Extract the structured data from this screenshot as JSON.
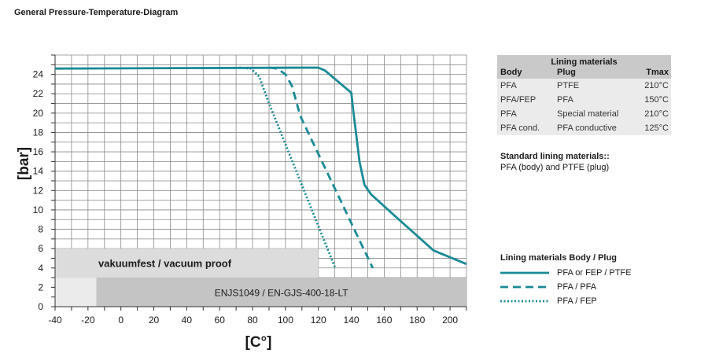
{
  "page_title": "General Pressure-Temperature-Diagram",
  "colors": {
    "series": "#1a8a96",
    "grid": "#8a8a8a",
    "band_light": "#dcdcdc",
    "band_dark": "#c4c4c4",
    "band_left": "#ebebeb"
  },
  "chart_data": {
    "type": "line",
    "xlabel": "[C°]",
    "ylabel": "[bar]",
    "xlim": [
      -40,
      210
    ],
    "ylim": [
      0,
      26
    ],
    "xticks": [
      -40,
      -20,
      0,
      20,
      40,
      60,
      80,
      100,
      120,
      140,
      160,
      180,
      200
    ],
    "yticks": [
      0,
      2,
      4,
      6,
      8,
      10,
      12,
      14,
      16,
      18,
      20,
      22,
      24
    ],
    "grid": "on",
    "series": [
      {
        "name": "PFA or FEP / PTFE",
        "style": "solid",
        "x": [
          -40,
          120,
          124,
          140,
          141,
          145,
          148,
          152,
          165,
          190,
          210
        ],
        "y": [
          24.6,
          24.7,
          24.4,
          22.1,
          20.5,
          15.0,
          12.6,
          11.6,
          9.6,
          5.8,
          4.4
        ]
      },
      {
        "name": "PFA / PFA",
        "style": "dashed",
        "x": [
          90,
          95,
          100,
          104,
          109,
          153
        ],
        "y": [
          24.7,
          24.6,
          24.0,
          22.8,
          19.7,
          4.0
        ]
      },
      {
        "name": "PFA / FEP",
        "style": "dotted",
        "x": [
          72,
          79,
          84,
          90,
          130
        ],
        "y": [
          24.7,
          24.6,
          23.8,
          21.0,
          4.1
        ]
      }
    ],
    "bands": [
      {
        "label": "vakuumfest / vacuum proof",
        "x": [
          -40,
          120
        ],
        "y": [
          3,
          6
        ]
      },
      {
        "label": "ENJS1049 / EN-GJS-400-18-LT",
        "x": [
          -15,
          210
        ],
        "y": [
          0,
          3
        ]
      },
      {
        "label": "",
        "x": [
          -40,
          -15
        ],
        "y": [
          0,
          3
        ]
      }
    ]
  },
  "lining_table": {
    "caption": "Lining materials",
    "headers": [
      "Body",
      "Plug",
      "Tmax"
    ],
    "rows": [
      [
        "PFA",
        "PTFE",
        "210°C"
      ],
      [
        "PFA/FEP",
        "PFA",
        "150°C"
      ],
      [
        "PFA",
        "Special material",
        "210°C"
      ],
      [
        "PFA cond.",
        "PFA conductive",
        "125°C"
      ]
    ]
  },
  "standard": {
    "title": "Standard lining materials::",
    "text": "PFA (body) and PTFE (plug)"
  },
  "legend": {
    "title": "Lining materials Body / Plug",
    "items": [
      "PFA or FEP / PTFE",
      "PFA / PFA",
      "PFA / FEP"
    ]
  }
}
